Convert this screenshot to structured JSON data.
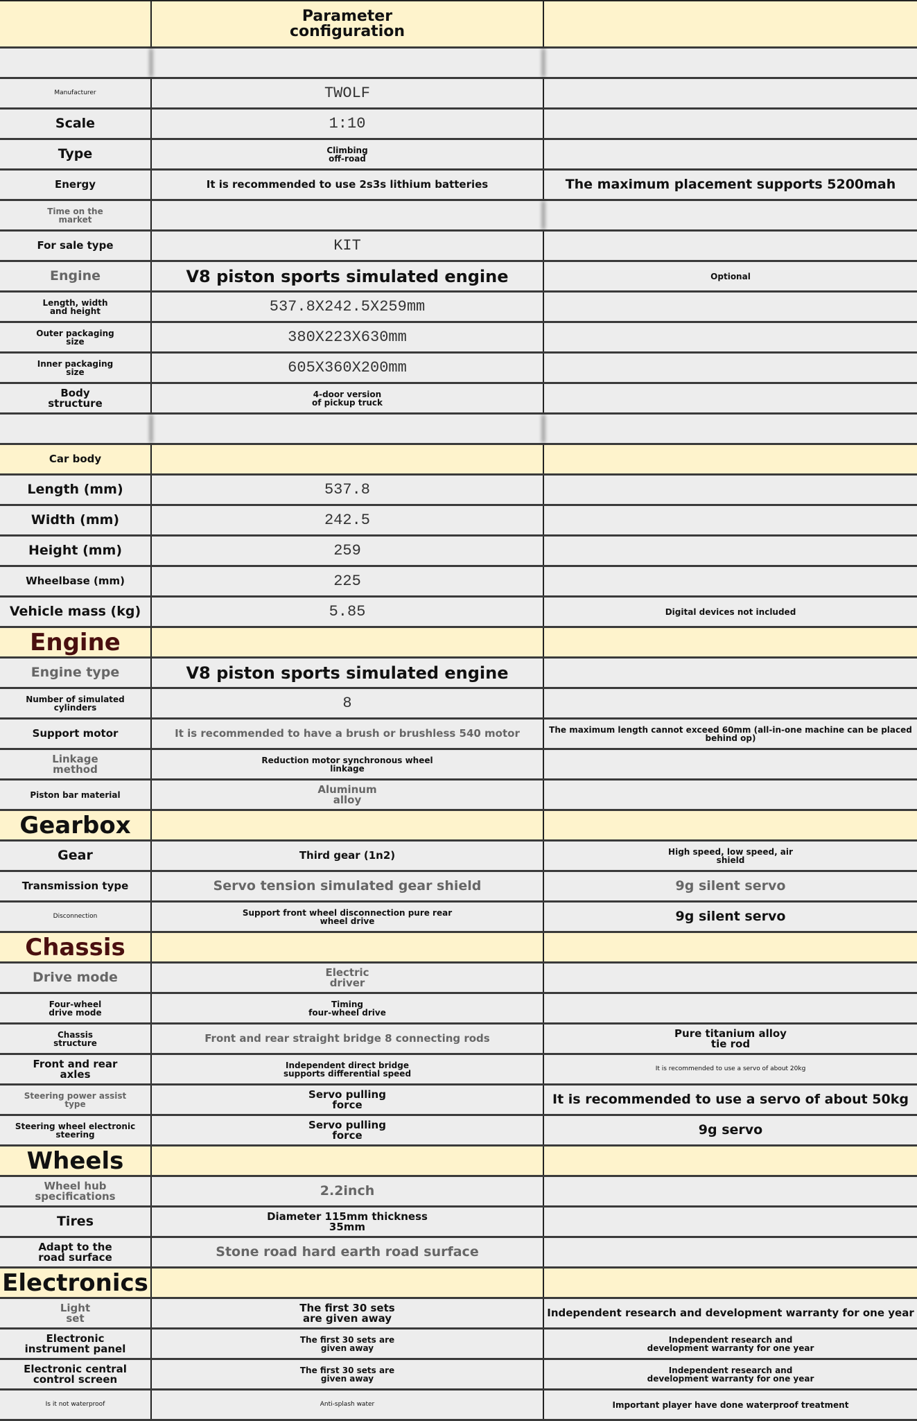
{
  "header": {
    "label": "",
    "value": "Parameter\nconfiguration",
    "note": ""
  },
  "rows": [
    {
      "label": "",
      "value": "",
      "note": ""
    },
    {
      "label": "Manufacturer",
      "value": "TWOLF",
      "note": ""
    },
    {
      "label": "Scale",
      "value": "1:10",
      "note": ""
    },
    {
      "label": "Type",
      "value": "Climbing\noff-road",
      "note": ""
    },
    {
      "label": "Energy",
      "value": "It is recommended to use 2s3s lithium batteries",
      "note": "The maximum placement supports 5200mah"
    },
    {
      "label": "Time on the\nmarket",
      "value": "",
      "note": ""
    },
    {
      "label": "For sale type",
      "value": "KIT",
      "note": ""
    },
    {
      "label": "Engine",
      "value": "V8 piston sports simulated engine",
      "note": "Optional"
    },
    {
      "label": "Length, width\nand height",
      "value": "537.8X242.5X259mm",
      "note": ""
    },
    {
      "label": "Outer packaging\nsize",
      "value": "380X223X630mm",
      "note": ""
    },
    {
      "label": "Inner packaging\nsize",
      "value": "605X360X200mm",
      "note": ""
    },
    {
      "label": "Body\nstructure",
      "value": "4-door version\nof pickup truck",
      "note": ""
    },
    {
      "label": "",
      "value": "",
      "note": ""
    },
    {
      "label": "Car body",
      "value": "",
      "note": "",
      "section": true
    },
    {
      "label": "Length (mm)",
      "value": "537.8",
      "note": ""
    },
    {
      "label": "Width (mm)",
      "value": "242.5",
      "note": ""
    },
    {
      "label": "Height (mm)",
      "value": "259",
      "note": ""
    },
    {
      "label": "Wheelbase (mm)",
      "value": "225",
      "note": ""
    },
    {
      "label": "Vehicle mass (kg)",
      "value": "5.85",
      "note": "Digital devices not included"
    },
    {
      "label": "Engine",
      "value": "",
      "note": "",
      "section": true
    },
    {
      "label": "Engine type",
      "value": "V8 piston sports simulated engine",
      "note": ""
    },
    {
      "label": "Number of simulated\ncylinders",
      "value": "8",
      "note": ""
    },
    {
      "label": "Support motor",
      "value": "It is recommended to have a brush or brushless 540 motor",
      "note": "The maximum length cannot exceed 60mm (all-in-one machine can be placed behind op)"
    },
    {
      "label": "Linkage\nmethod",
      "value": "Reduction motor synchronous wheel\nlinkage",
      "note": ""
    },
    {
      "label": "Piston bar material",
      "value": "Aluminum\nalloy",
      "note": ""
    },
    {
      "label": "Gearbox",
      "value": "",
      "note": "",
      "section": true
    },
    {
      "label": "Gear",
      "value": "Third gear (1n2)",
      "note": "High speed, low speed, air\nshield"
    },
    {
      "label": "Transmission type",
      "value": "Servo tension simulated gear shield",
      "note": "9g silent servo"
    },
    {
      "label": "Disconnection",
      "value": "Support front wheel disconnection pure rear\nwheel drive",
      "note": "9g silent servo"
    },
    {
      "label": "Chassis",
      "value": "",
      "note": "",
      "section": true
    },
    {
      "label": "Drive mode",
      "value": "Electric\ndriver",
      "note": ""
    },
    {
      "label": "Four-wheel\ndrive mode",
      "value": "Timing\nfour-wheel drive",
      "note": ""
    },
    {
      "label": "Chassis\nstructure",
      "value": "Front and rear straight bridge 8 connecting rods",
      "note": "Pure titanium alloy\ntie rod"
    },
    {
      "label": "Front and rear\naxles",
      "value": "Independent direct bridge\nsupports differential speed",
      "note": "It is recommended to use a servo of about 20kg"
    },
    {
      "label": "Steering power assist\ntype",
      "value": "Servo pulling\nforce",
      "note": "It is recommended to use a servo of about 50kg"
    },
    {
      "label": "Steering wheel electronic\nsteering",
      "value": "Servo pulling\nforce",
      "note": "9g servo"
    },
    {
      "label": "Wheels",
      "value": "",
      "note": "",
      "section": true
    },
    {
      "label": "Wheel hub\nspecifications",
      "value": "2.2inch",
      "note": ""
    },
    {
      "label": "Tires",
      "value": "Diameter 115mm thickness\n35mm",
      "note": ""
    },
    {
      "label": "Adapt to the\nroad surface",
      "value": "Stone road hard earth road surface",
      "note": ""
    },
    {
      "label": "Electronics",
      "value": "",
      "note": "",
      "section": true
    },
    {
      "label": "Light\nset",
      "value": "The first 30 sets\nare given away",
      "note": "Independent research and development warranty for one year"
    },
    {
      "label": "Electronic\ninstrument panel",
      "value": "The first 30 sets are\ngiven away",
      "note": "Independent research and\ndevelopment warranty for one year"
    },
    {
      "label": "Electronic central\ncontrol screen",
      "value": "The first 30 sets are\ngiven away",
      "note": "Independent research and\ndevelopment warranty for one year"
    },
    {
      "label": "Is it not waterproof",
      "value": "Anti-splash water",
      "note": "Important player have done waterproof treatment"
    }
  ]
}
